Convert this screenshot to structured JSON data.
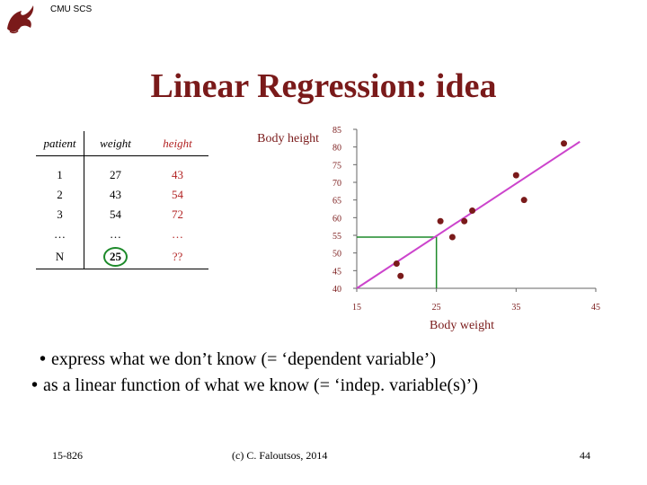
{
  "header": {
    "org": "CMU SCS"
  },
  "title": "Linear Regression: idea",
  "table": {
    "headers": [
      "patient",
      "weight",
      "height"
    ],
    "rows": [
      [
        "1",
        "27",
        "43"
      ],
      [
        "2",
        "43",
        "54"
      ],
      [
        "3",
        "54",
        "72"
      ],
      [
        "…",
        "…",
        "…"
      ],
      [
        "N",
        "25",
        "??"
      ]
    ]
  },
  "chart_data": {
    "type": "scatter",
    "ylabel": "Body height",
    "xlabel": "Body weight",
    "xlim": [
      15,
      45
    ],
    "ylim": [
      40,
      85
    ],
    "xticks": [
      15,
      25,
      35,
      45
    ],
    "yticks": [
      40,
      45,
      50,
      55,
      60,
      65,
      70,
      75,
      80,
      85
    ],
    "points": [
      {
        "x": 20,
        "y": 47
      },
      {
        "x": 20.5,
        "y": 43.5
      },
      {
        "x": 25.5,
        "y": 59
      },
      {
        "x": 27,
        "y": 54.5
      },
      {
        "x": 28.5,
        "y": 59
      },
      {
        "x": 29.5,
        "y": 62
      },
      {
        "x": 35,
        "y": 72
      },
      {
        "x": 36,
        "y": 65
      },
      {
        "x": 41,
        "y": 81
      }
    ],
    "regression_line": {
      "x": [
        15,
        43
      ],
      "y": [
        40,
        81.5
      ],
      "color": "#cc44cc"
    },
    "query": {
      "x": 25,
      "y": 54.5,
      "color": "#1d8a2a"
    },
    "point_color": "#7a1a1a"
  },
  "bullets": [
    "express what we don’t know (= ‘dependent variable’)",
    "as a linear function of what we know (= ‘indep. variable(s)’)"
  ],
  "footer": {
    "left": "15-826",
    "center": "(c) C. Faloutsos, 2014",
    "page": "44"
  }
}
